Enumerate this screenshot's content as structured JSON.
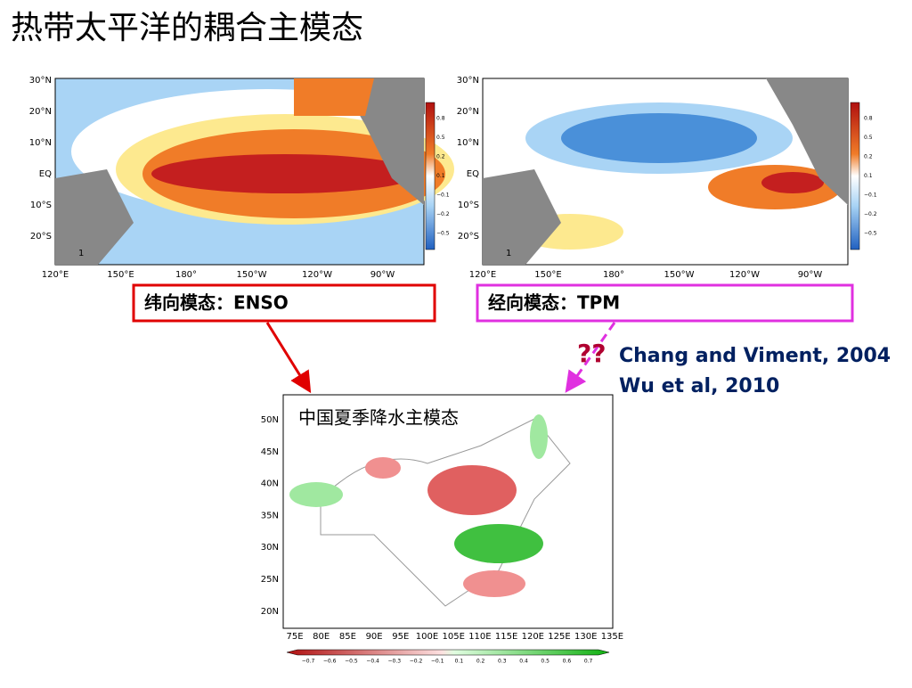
{
  "title": "热带太平洋的耦合主模态",
  "panels": [
    {
      "label": "纬向模态：ENSO",
      "lat_labels": [
        "30°N",
        "20°N",
        "10°N",
        "EQ",
        "10°S",
        "20°S"
      ],
      "lon_labels": [
        "120°E",
        "150°E",
        "180°",
        "150°W",
        "120°W",
        "90°W"
      ],
      "colorbar_labels": [
        "0.8",
        "0.5",
        "0.2",
        "0.1",
        "−0.1",
        "−0.2",
        "−0.5"
      ],
      "vector_label": "1"
    },
    {
      "label": "经向模态：TPM",
      "lat_labels": [
        "30°N",
        "20°N",
        "10°N",
        "EQ",
        "10°S",
        "20°S"
      ],
      "lon_labels": [
        "120°E",
        "150°E",
        "180°",
        "150°W",
        "120°W",
        "90°W"
      ],
      "colorbar_labels": [
        "0.8",
        "0.5",
        "0.2",
        "0.1",
        "−0.1",
        "−0.2",
        "−0.5"
      ],
      "vector_label": "1"
    }
  ],
  "note": "??",
  "references": [
    "Chang and Viment, 2004",
    "Wu et al, 2010"
  ],
  "china_map": {
    "title": "中国夏季降水主模态",
    "lat_labels": [
      "50N",
      "45N",
      "40N",
      "35N",
      "30N",
      "25N",
      "20N"
    ],
    "lon_labels": [
      "75E",
      "80E",
      "85E",
      "90E",
      "95E",
      "100E",
      "105E",
      "110E",
      "115E",
      "120E",
      "125E",
      "130E",
      "135E"
    ],
    "colorbar_labels": [
      "−0.7",
      "−0.6",
      "−0.5",
      "−0.4",
      "−0.3",
      "−0.2",
      "−0.1",
      "0.1",
      "0.2",
      "0.3",
      "0.4",
      "0.5",
      "0.6",
      "0.7"
    ]
  }
}
